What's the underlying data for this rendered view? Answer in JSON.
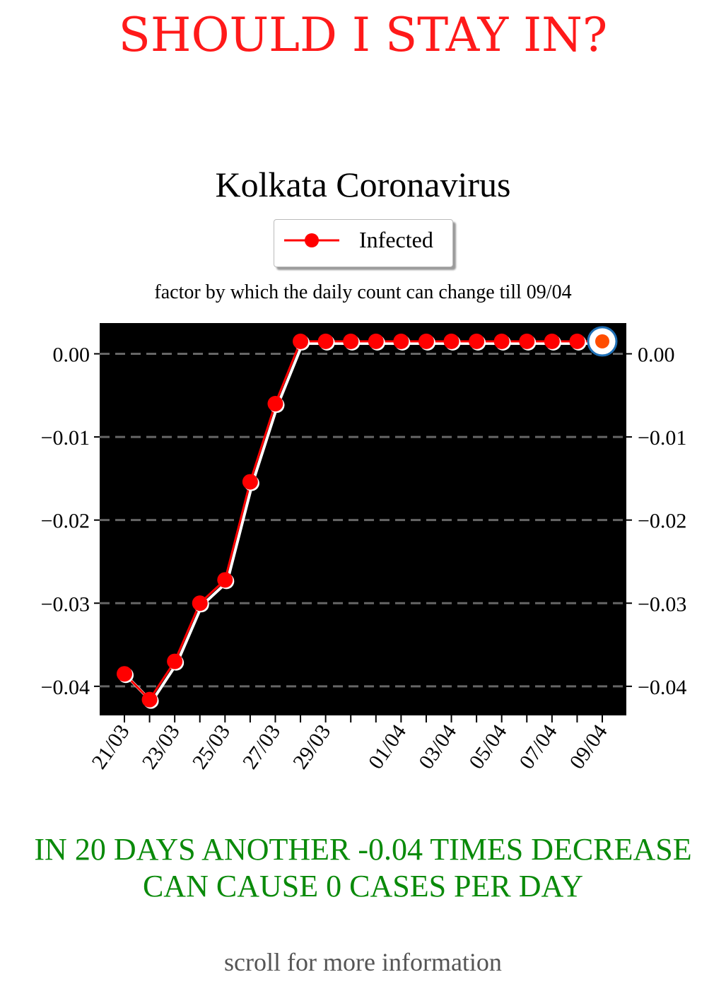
{
  "page": {
    "headline": "SHOULD I STAY IN?",
    "conclusion_line1": "IN 20 DAYS ANOTHER -0.04 TIMES DECREASE",
    "conclusion_line2": "CAN CAUSE 0 CASES PER DAY",
    "footer_hint": "scroll for more information"
  },
  "colors": {
    "headline": "#ff1a1a",
    "conclusion": "#0a8a0a",
    "series": "#ff0000",
    "plot_background": "#000000",
    "grid": "#666666",
    "final_marker_ring": "#1f6fb5"
  },
  "chart_data": {
    "type": "line",
    "title": "Kolkata Coronavirus",
    "subtitle": "factor by which the daily count can change till 09/04",
    "xlabel": "",
    "ylabel": "",
    "legend_position": "top-center",
    "grid": "horizontal dashed",
    "x": [
      "21/03",
      "22/03",
      "23/03",
      "24/03",
      "25/03",
      "26/03",
      "27/03",
      "28/03",
      "29/03",
      "30/03",
      "31/03",
      "01/04",
      "02/04",
      "03/04",
      "04/04",
      "05/04",
      "06/04",
      "07/04",
      "08/04",
      "09/04"
    ],
    "x_tick_labels": [
      "21/03",
      "23/03",
      "25/03",
      "27/03",
      "29/03",
      "01/04",
      "03/04",
      "05/04",
      "07/04",
      "09/04"
    ],
    "y_tick_labels": [
      "0.00",
      "−0.01",
      "−0.02",
      "−0.03",
      "−0.04"
    ],
    "y_ticks": [
      0,
      -0.01,
      -0.02,
      -0.03,
      -0.04
    ],
    "ylim": [
      -0.0435,
      0.0037
    ],
    "series": [
      {
        "name": "Infected",
        "values": [
          -0.0385,
          -0.0416,
          -0.037,
          -0.03,
          -0.0272,
          -0.0154,
          -0.006,
          0.0015,
          0.0015,
          0.0015,
          0.0015,
          0.0015,
          0.0015,
          0.0015,
          0.0015,
          0.0015,
          0.0015,
          0.0015,
          0.0015,
          0.0015
        ]
      }
    ]
  }
}
